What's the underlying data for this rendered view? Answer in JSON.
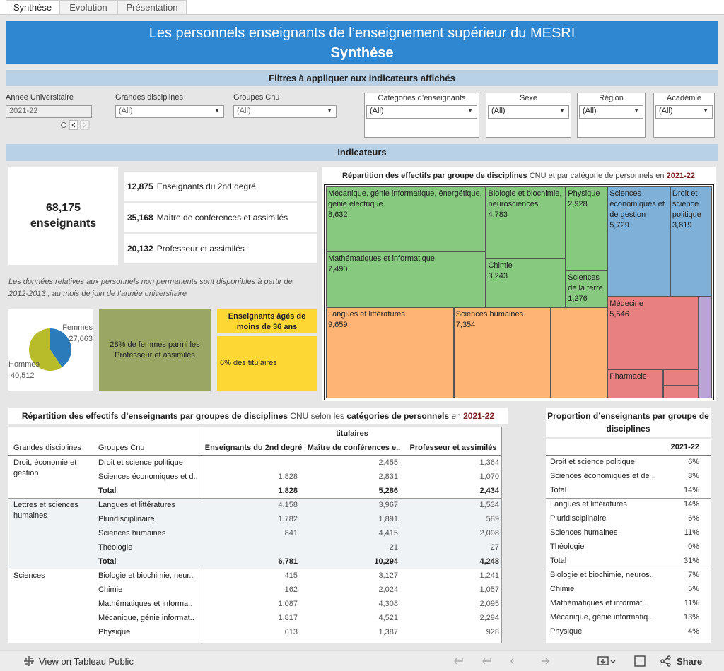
{
  "tabs": [
    "Synthèse",
    "Evolution",
    "Présentation"
  ],
  "header": {
    "title": "Les personnels enseignants de l’enseignement supérieur du MESRI",
    "subtitle": "Synthèse"
  },
  "filters": {
    "heading": "Filtres à appliquer aux indicateurs affichés",
    "items": [
      {
        "label": "Annee Universitaire",
        "value": "2021-22"
      },
      {
        "label": "Grandes disciplines",
        "value": "(All)"
      },
      {
        "label": "Groupes Cnu",
        "value": "(All)"
      },
      {
        "label": "Catégories d’enseignants",
        "value": "(All)"
      },
      {
        "label": "Sexe",
        "value": "(All)"
      },
      {
        "label": "Région",
        "value": "(All)"
      },
      {
        "label": "Académie",
        "value": "(All)"
      }
    ]
  },
  "indicators": {
    "heading": "Indicateurs",
    "total": {
      "value": "68,175",
      "label": "enseignants"
    },
    "breakdown": [
      {
        "value": "12,875",
        "label": "Enseignants du 2nd degré"
      },
      {
        "value": "35,168",
        "label": "Maître de conférences et assimilés"
      },
      {
        "value": "20,132",
        "label": "Professeur et assimilés"
      }
    ],
    "note": "Les données relatives aux personnels non permanents sont disponibles à partir de 2012-2013 ,  au mois de juin de l’année universitaire",
    "women_card": "28% de  femmes parmi les Professeur et assimilés",
    "young_title": "Enseignants âgés de moins de 36 ans",
    "young_card": "6% des titulaires"
  },
  "pie": {
    "type": "pie",
    "series": [
      {
        "name": "Femmes",
        "value": 27663,
        "value_label": "27,663",
        "color": "#2b7bba"
      },
      {
        "name": "Hommes",
        "value": 40512,
        "value_label": "40,512",
        "color": "#b8bb2a"
      }
    ]
  },
  "treemap": {
    "type": "treemap",
    "title_parts": [
      {
        "text": "Répartition des effectifs par groupe de disciplines",
        "style": "bold"
      },
      {
        "text": "CNU et par catégorie de personnels en",
        "style": "normal"
      },
      {
        "text": "2021-22",
        "style": "accent"
      }
    ],
    "cells": [
      {
        "name": "Mécanique, génie informatique, énergétique, génie électrique",
        "value": 8632,
        "value_label": "8,632",
        "color": "#86c97f"
      },
      {
        "name": "Mathématiques et informatique",
        "value": 7490,
        "value_label": "7,490",
        "color": "#86c97f"
      },
      {
        "name": "Biologie et biochimie, neurosciences",
        "value": 4783,
        "value_label": "4,783",
        "color": "#86c97f"
      },
      {
        "name": "Chimie",
        "value": 3243,
        "value_label": "3,243",
        "color": "#86c97f"
      },
      {
        "name": "Physique",
        "value": 2928,
        "value_label": "2,928",
        "color": "#86c97f"
      },
      {
        "name": "Sciences de la terre",
        "value": 1276,
        "value_label": "1,276",
        "color": "#86c97f"
      },
      {
        "name": "Langues et littératures",
        "value": 9659,
        "value_label": "9,659",
        "color": "#fdb474"
      },
      {
        "name": "Sciences humaines",
        "value": 7354,
        "value_label": "7,354",
        "color": "#fdb474"
      },
      {
        "name": null,
        "value": 4270,
        "color": "#fdb474"
      },
      {
        "name": "Sciences économiques et de gestion",
        "value": 5729,
        "value_label": "5,729",
        "color": "#7fb1d8"
      },
      {
        "name": "Droit et science politique",
        "value": 3819,
        "value_label": "3,819",
        "color": "#7fb1d8"
      },
      {
        "name": "Médecine",
        "value": 5546,
        "value_label": "5,546",
        "color": "#e87f80"
      },
      {
        "name": "Pharmacie",
        "value": 1330,
        "color": "#e87f80"
      },
      {
        "name": null,
        "value": 480,
        "color": "#e87f80"
      },
      {
        "name": null,
        "value": 370,
        "color": "#e87f80"
      },
      {
        "name": null,
        "value": 1130,
        "color": "#bca3d6"
      }
    ]
  },
  "table": {
    "title_parts": [
      {
        "text": "Répartition des effectifs d’enseignants par groupes de disciplines",
        "style": "bold"
      },
      {
        "text": "CNU selon les",
        "style": "normal"
      },
      {
        "text": "catégories de personnels",
        "style": "bold"
      },
      {
        "text": "en",
        "style": "normal"
      },
      {
        "text": "2021-22",
        "style": "accent"
      }
    ],
    "super_header": "titulaires",
    "columns": [
      "Grandes disciplines",
      "Groupes Cnu",
      "Enseignants du 2nd degré",
      "Maître de conférences e..",
      "Professeur et assimilés"
    ],
    "rows": [
      [
        "Droit, économie et gestion",
        "Droit et science politique",
        null,
        "2,455",
        "1,364"
      ],
      [
        null,
        "Sciences économiques et d..",
        "1,828",
        "2,831",
        "1,070"
      ],
      [
        null,
        "Total",
        "1,828",
        "5,286",
        "2,434"
      ],
      [
        "Lettres et sciences humaines",
        "Langues et littératures",
        "4,158",
        "3,967",
        "1,534"
      ],
      [
        null,
        "Pluridisciplinaire",
        "1,782",
        "1,891",
        "589"
      ],
      [
        null,
        "Sciences humaines",
        "841",
        "4,415",
        "2,098"
      ],
      [
        null,
        "Théologie",
        null,
        "21",
        "27"
      ],
      [
        null,
        "Total",
        "6,781",
        "10,294",
        "4,248"
      ],
      [
        "Sciences",
        "Biologie et biochimie, neur..",
        "415",
        "3,127",
        "1,241"
      ],
      [
        null,
        "Chimie",
        "162",
        "2,024",
        "1,057"
      ],
      [
        null,
        "Mathématiques et informa..",
        "1,087",
        "4,308",
        "2,095"
      ],
      [
        null,
        "Mécanique, génie informat..",
        "1,817",
        "4,521",
        "2,294"
      ],
      [
        null,
        "Physique",
        "613",
        "1,387",
        "928"
      ]
    ]
  },
  "proportion": {
    "title": "Proportion d’enseignants par groupe de disciplines",
    "column": "2021-22",
    "rows": [
      [
        "Droit et science politique",
        "6%"
      ],
      [
        "Sciences économiques et de ..",
        "8%"
      ],
      [
        "Total",
        "14%"
      ],
      [
        "Langues et littératures",
        "14%"
      ],
      [
        "Pluridisciplinaire",
        "6%"
      ],
      [
        "Sciences humaines",
        "11%"
      ],
      [
        "Théologie",
        "0%"
      ],
      [
        "Total",
        "31%"
      ],
      [
        "Biologie et biochimie, neuros..",
        "7%"
      ],
      [
        "Chimie",
        "5%"
      ],
      [
        "Mathématiques et informati..",
        "11%"
      ],
      [
        "Mécanique, génie informatiq..",
        "13%"
      ],
      [
        "Physique",
        "4%"
      ]
    ]
  },
  "footer": {
    "link": "View on Tableau Public",
    "share": "Share"
  }
}
